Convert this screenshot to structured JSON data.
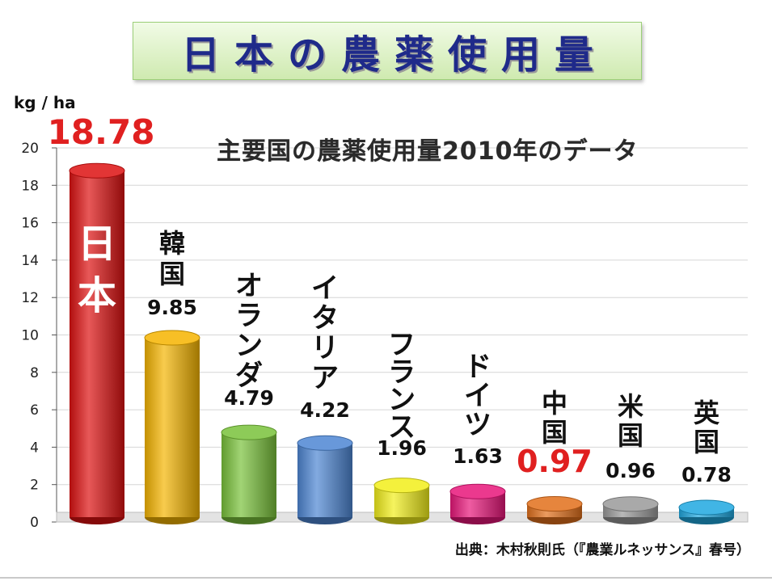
{
  "title": "日本の農薬使用量",
  "chart_data": {
    "type": "bar",
    "subtitle": "主要国の農薬使用量2010年のデータ",
    "ylabel": "kg / ha",
    "ylim": [
      0,
      20
    ],
    "yticks": [
      0,
      2,
      4,
      6,
      8,
      10,
      12,
      14,
      16,
      18,
      20
    ],
    "categories": [
      "日本",
      "韓国",
      "オランダ",
      "イタリア",
      "フランス",
      "ドイツ",
      "中国",
      "米国",
      "英国"
    ],
    "values": [
      18.78,
      9.85,
      4.79,
      4.22,
      1.96,
      1.63,
      0.97,
      0.96,
      0.78
    ],
    "value_labels": [
      "18.78",
      "9.85",
      "4.79",
      "4.22",
      "1.96",
      "1.63",
      "0.97",
      "0.96",
      "0.78"
    ],
    "colors": [
      "#dd1111",
      "#f5b400",
      "#79c23a",
      "#4d86d3",
      "#f2ef1a",
      "#e8167a",
      "#e2701b",
      "#9a9a9a",
      "#1fa8e0"
    ],
    "highlight_label_color": "#e02020",
    "highlighted": [
      "日本",
      "中国"
    ],
    "source": "出典：木村秋則氏（『農業ルネッサンス』春号）"
  }
}
